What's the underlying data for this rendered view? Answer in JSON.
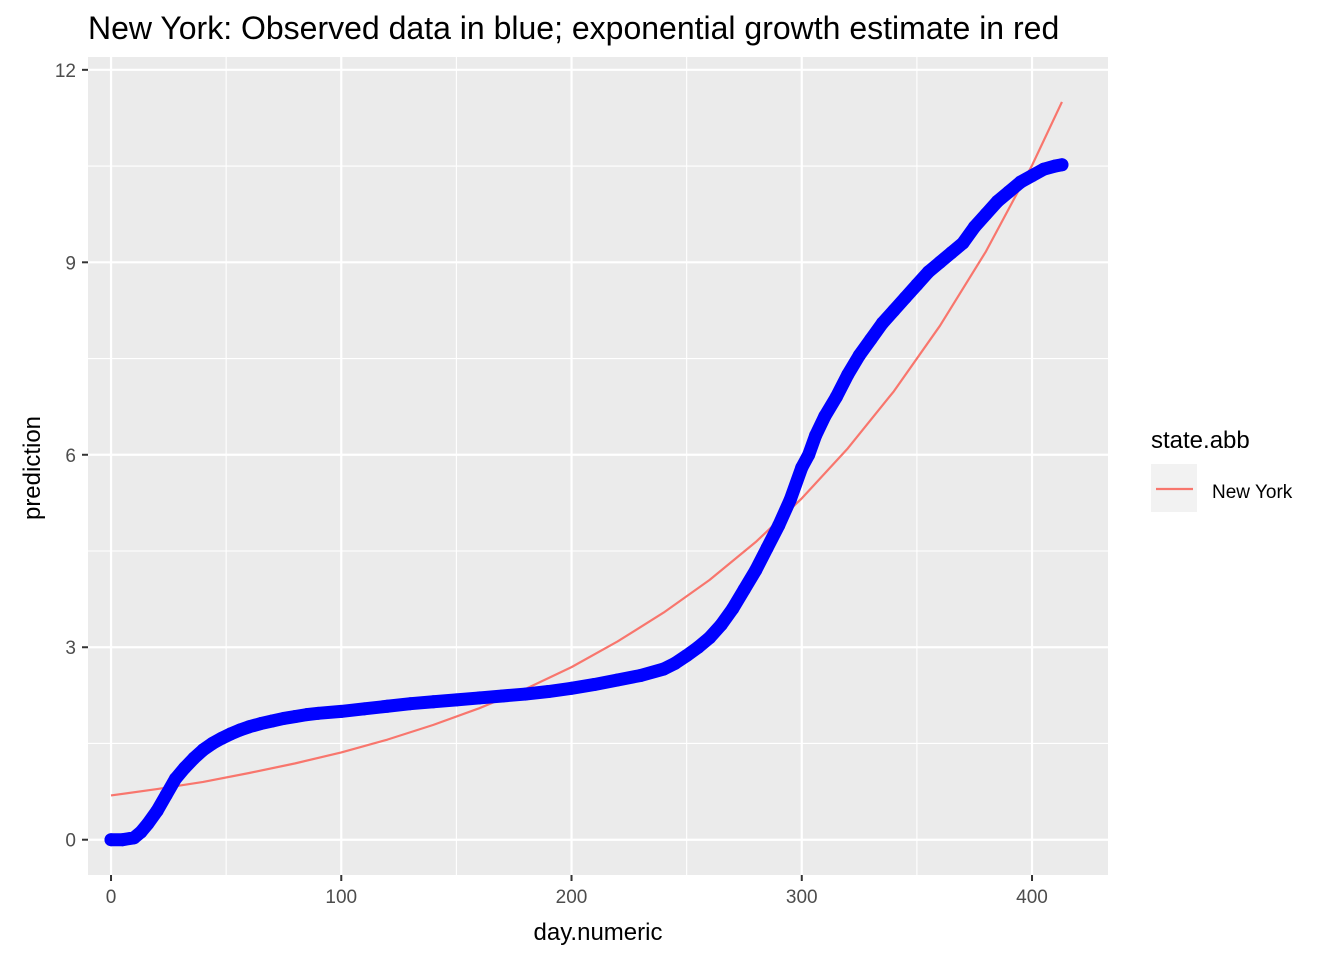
{
  "chart_data": {
    "type": "line",
    "title": "New York: Observed data in blue; exponential growth estimate in red",
    "xlabel": "day.numeric",
    "ylabel": "prediction",
    "xlim": [
      -10,
      433
    ],
    "ylim": [
      -0.55,
      12.2
    ],
    "x_ticks": [
      0,
      100,
      200,
      300,
      400
    ],
    "x_tick_labels": [
      "0",
      "100",
      "200",
      "300",
      "400"
    ],
    "y_ticks": [
      0,
      3,
      6,
      9,
      12
    ],
    "y_tick_labels": [
      "0",
      "3",
      "6",
      "9",
      "12"
    ],
    "grid": true,
    "legend": {
      "title": "state.abb",
      "position": "right",
      "entries": [
        {
          "name": "New York",
          "color": "#F8766D"
        }
      ]
    },
    "series": [
      {
        "name": "observed",
        "role": "observed",
        "color": "#0000FF",
        "x": [
          0,
          5,
          10,
          13,
          16,
          20,
          24,
          28,
          32,
          36,
          40,
          44,
          48,
          52,
          56,
          60,
          65,
          70,
          75,
          80,
          85,
          90,
          100,
          110,
          120,
          130,
          140,
          150,
          160,
          170,
          180,
          190,
          200,
          210,
          220,
          230,
          240,
          245,
          250,
          255,
          260,
          265,
          270,
          275,
          280,
          285,
          290,
          295,
          300,
          303,
          306,
          310,
          315,
          320,
          325,
          330,
          335,
          340,
          345,
          350,
          355,
          360,
          365,
          370,
          375,
          380,
          385,
          390,
          395,
          400,
          405,
          410,
          413
        ],
        "y": [
          0,
          0,
          0.03,
          0.12,
          0.25,
          0.45,
          0.7,
          0.95,
          1.12,
          1.27,
          1.4,
          1.5,
          1.58,
          1.65,
          1.71,
          1.76,
          1.81,
          1.85,
          1.89,
          1.92,
          1.95,
          1.97,
          2.0,
          2.04,
          2.08,
          2.12,
          2.15,
          2.18,
          2.21,
          2.24,
          2.27,
          2.31,
          2.36,
          2.42,
          2.49,
          2.56,
          2.66,
          2.75,
          2.87,
          3.0,
          3.15,
          3.35,
          3.6,
          3.9,
          4.2,
          4.55,
          4.9,
          5.3,
          5.8,
          6.0,
          6.3,
          6.6,
          6.9,
          7.25,
          7.55,
          7.8,
          8.05,
          8.25,
          8.45,
          8.65,
          8.85,
          9.0,
          9.15,
          9.3,
          9.55,
          9.75,
          9.95,
          10.1,
          10.25,
          10.35,
          10.45,
          10.5,
          10.52
        ]
      },
      {
        "name": "New York",
        "role": "estimate",
        "color": "#F8766D",
        "x": [
          0,
          20,
          40,
          60,
          80,
          100,
          120,
          140,
          160,
          180,
          200,
          220,
          240,
          260,
          280,
          300,
          320,
          340,
          360,
          380,
          400,
          413
        ],
        "y": [
          0.69,
          0.79,
          0.9,
          1.04,
          1.19,
          1.36,
          1.56,
          1.79,
          2.05,
          2.35,
          2.69,
          3.09,
          3.54,
          4.05,
          4.64,
          5.32,
          6.1,
          6.99,
          8.01,
          9.17,
          10.51,
          11.5
        ]
      }
    ]
  }
}
